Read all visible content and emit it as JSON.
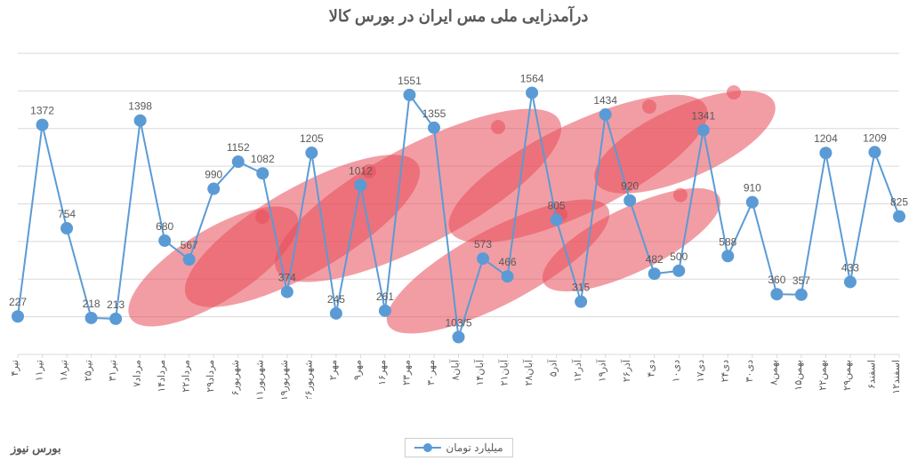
{
  "chart": {
    "type": "line",
    "title": "درآمدزایی ملی مس ایران در بورس کالا",
    "title_fontsize": 18,
    "title_color": "#595959",
    "legend_label": "میلیارد تومان",
    "watermark_text": "بورس نیوز",
    "watermark_color": "#e84c5a",
    "line_color": "#5b9bd5",
    "marker_color": "#5b9bd5",
    "marker_radius": 7,
    "grid_color": "#d9d9d9",
    "background_color": "#ffffff",
    "label_color": "#595959",
    "label_fontsize": 12,
    "x_label_fontsize": 11,
    "ylim": [
      0,
      1800
    ],
    "categories": [
      "۴تیر",
      "۱۱تیر",
      "۱۸تیر",
      "۲۵تیر",
      "۳۱تیر",
      "۷مرداد",
      "۱۴مرداد",
      "۲۲مرداد",
      "۲۹مرداد",
      "۶شهریور",
      "۱۱شهریور",
      "۱۹شهریور",
      "۲۶شهریور",
      "۲مهر",
      "۹مهر",
      "۱۶مهر",
      "۲۳مهر",
      "۳۰مهر",
      "۸آبان",
      "۱۴آبان",
      "۲۱آبان",
      "۲۸آبان",
      "۵آذر",
      "۱۲آذر",
      "۱۹آذر",
      "۲۶آذر",
      "۴دی",
      "۱۰دی",
      "۱۷دی",
      "۲۴دی",
      "۳۰دی",
      "۸بهمن",
      "۱۵بهمن",
      "۲۲بهمن",
      "۲۹بهمن",
      "۶اسفند",
      "۱۲اسفند"
    ],
    "values": [
      227,
      1372,
      754,
      218,
      213,
      1398,
      680,
      567,
      990,
      1152,
      1082,
      374,
      1205,
      245,
      1012,
      261,
      1551,
      1355,
      103.5,
      573,
      466,
      1564,
      805,
      315,
      1434,
      920,
      482,
      500,
      1341,
      588,
      910,
      360,
      357,
      1204,
      433,
      1209,
      825
    ],
    "value_labels": [
      "227",
      "1372",
      "754",
      "218",
      "213",
      "1398",
      "680",
      "567",
      "990",
      "1152",
      "1082",
      "374",
      "1205",
      "245",
      "1012",
      "261",
      "1551",
      "1355",
      "103/5",
      "573",
      "466",
      "1564",
      "805",
      "315",
      "1434",
      "920",
      "482",
      "500",
      "1341",
      "588",
      "910",
      "360",
      "357",
      "1204",
      "433",
      "1209",
      "825"
    ]
  }
}
